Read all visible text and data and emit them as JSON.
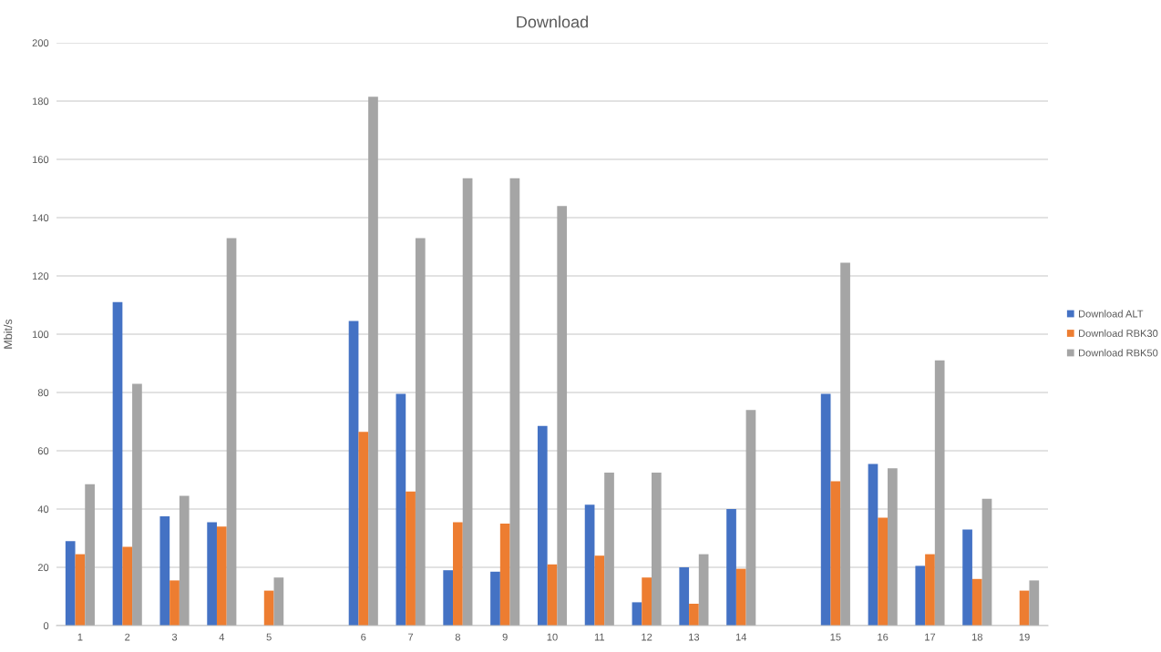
{
  "chart_data": {
    "type": "bar",
    "title": "Download",
    "ylabel": "Mbit/s",
    "categories": [
      "1",
      "2",
      "3",
      "4",
      "5",
      null,
      "6",
      "7",
      "8",
      "9",
      "10",
      "11",
      "12",
      "13",
      "14",
      null,
      "15",
      "16",
      "17",
      "18",
      "19"
    ],
    "series": [
      {
        "name": "Download ALT",
        "color": "#4472c4",
        "values": [
          29,
          111,
          37.5,
          35.5,
          null,
          null,
          104.5,
          79.5,
          19,
          18.5,
          68.5,
          41.5,
          8,
          20,
          40,
          null,
          79.5,
          55.5,
          20.5,
          33,
          null
        ]
      },
      {
        "name": "Download RBK30",
        "color": "#ed7d31",
        "values": [
          24.5,
          27,
          15.5,
          34,
          12,
          null,
          66.5,
          46,
          35.5,
          35,
          21,
          24,
          16.5,
          7.5,
          19.5,
          null,
          49.5,
          37,
          24.5,
          16,
          12
        ]
      },
      {
        "name": "Download RBK50",
        "color": "#a5a5a5",
        "values": [
          48.5,
          83,
          44.5,
          133,
          16.5,
          null,
          181.5,
          133,
          153.5,
          153.5,
          144,
          52.5,
          52.5,
          24.5,
          74,
          null,
          124.5,
          54,
          91,
          43.5,
          15.5
        ]
      }
    ],
    "ylim": [
      0,
      200
    ],
    "yticks": [
      0,
      20,
      40,
      60,
      80,
      100,
      120,
      140,
      160,
      180,
      200
    ],
    "grid": "y",
    "legend": "right"
  }
}
